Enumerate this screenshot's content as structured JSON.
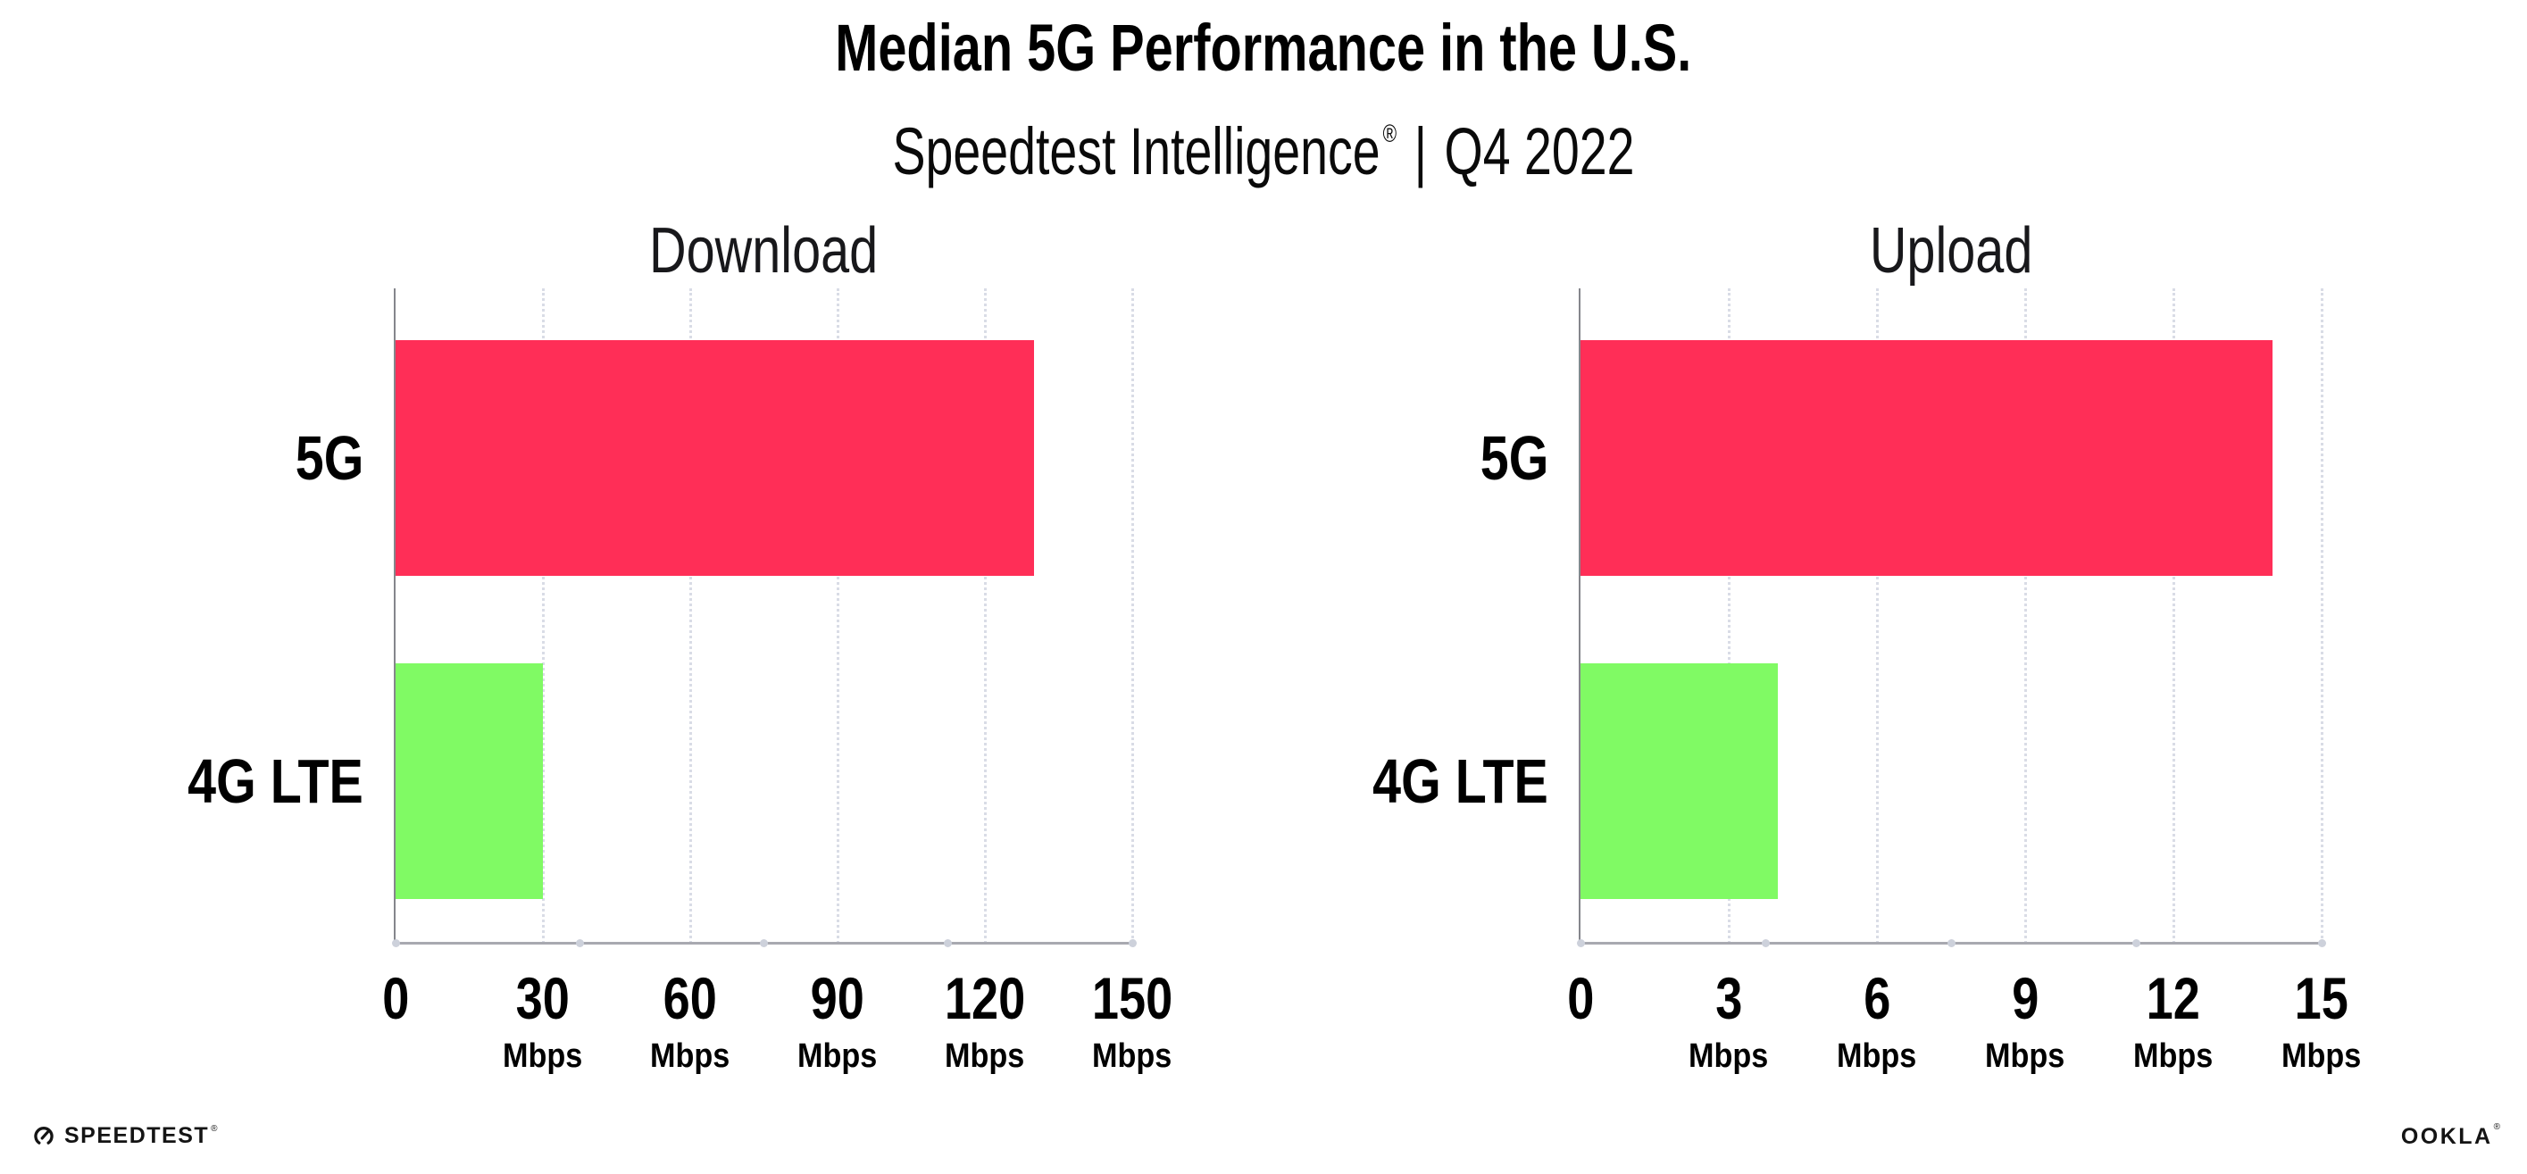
{
  "title": "Median 5G Performance in the U.S.",
  "subtitle": {
    "brand": "Speedtest Intelligence",
    "registered": "®",
    "separator": "|",
    "period": "Q4 2022"
  },
  "colors": {
    "bar_5g": "#ff2e57",
    "bar_4g_lte": "#80fa64",
    "axis": "#a8a9b0",
    "gridline": "#d9dce6",
    "text": "#000000"
  },
  "chart_data": [
    {
      "type": "bar",
      "orientation": "horizontal",
      "title": "Download",
      "categories": [
        "5G",
        "4G LTE"
      ],
      "values": [
        130,
        30
      ],
      "unit": "Mbps",
      "xlim": [
        0,
        150
      ],
      "xticks": [
        0,
        30,
        60,
        90,
        120,
        150
      ],
      "xtick_unit_suffix": "Mbps",
      "bar_colors": [
        "#ff2e57",
        "#80fa64"
      ],
      "grid": "dotted-vertical",
      "legend": "none"
    },
    {
      "type": "bar",
      "orientation": "horizontal",
      "title": "Upload",
      "categories": [
        "5G",
        "4G LTE"
      ],
      "values": [
        14,
        4
      ],
      "unit": "Mbps",
      "xlim": [
        0,
        15
      ],
      "xticks": [
        0,
        3,
        6,
        9,
        12,
        15
      ],
      "xtick_unit_suffix": "Mbps",
      "bar_colors": [
        "#ff2e57",
        "#80fa64"
      ],
      "grid": "dotted-vertical",
      "legend": "none"
    }
  ],
  "footer": {
    "logo_icon": "speedtest-gauge-icon",
    "speedtest_label": "SPEEDTEST",
    "speedtest_mark": "®",
    "ookla_label": "OOKLA",
    "ookla_mark": "®"
  }
}
